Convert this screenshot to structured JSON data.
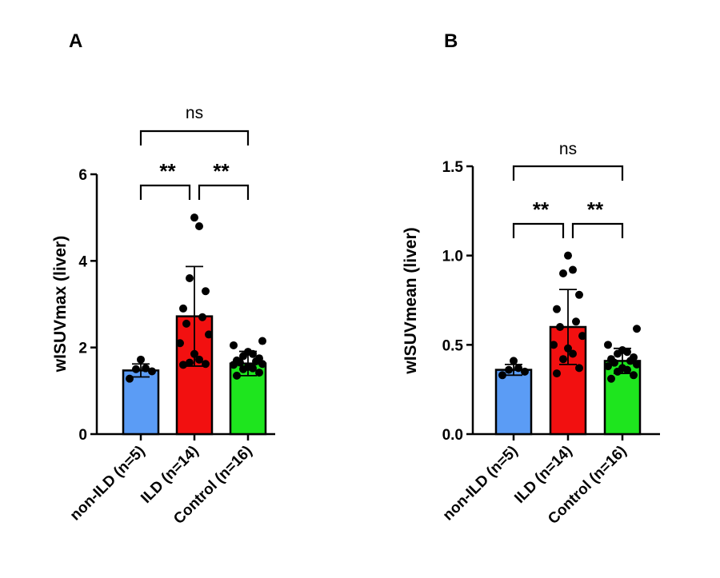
{
  "chart_data": [
    {
      "type": "bar",
      "panel": "A",
      "ylabel": "wISUVmax (liver)",
      "ylim": [
        0,
        6
      ],
      "yticks": [
        "0",
        "2",
        "4",
        "6"
      ],
      "categories": [
        "non-ILD (n=5)",
        "ILD (n=14)",
        "Control (n=16)"
      ],
      "values": [
        1.47,
        2.72,
        1.63
      ],
      "error": [
        0.15,
        1.15,
        0.28
      ],
      "colors": [
        "#5b9cf5",
        "#f21010",
        "#1ee51e"
      ],
      "points": [
        [
          1.28,
          1.45,
          1.5,
          1.52,
          1.72
        ],
        [
          1.6,
          1.62,
          1.65,
          1.72,
          1.85,
          2.1,
          2.3,
          2.55,
          2.7,
          2.9,
          3.3,
          3.6,
          4.8,
          5.0
        ],
        [
          1.35,
          1.42,
          1.5,
          1.52,
          1.55,
          1.6,
          1.62,
          1.65,
          1.68,
          1.7,
          1.75,
          1.8,
          1.85,
          1.9,
          2.05,
          2.15
        ]
      ],
      "comparisons": [
        {
          "groups": [
            0,
            1
          ],
          "label": "**"
        },
        {
          "groups": [
            1,
            2
          ],
          "label": "**"
        },
        {
          "groups": [
            0,
            2
          ],
          "label": "ns"
        }
      ]
    },
    {
      "type": "bar",
      "panel": "B",
      "ylabel": "wISUVmean (liver)",
      "ylim": [
        0,
        1.5
      ],
      "yticks": [
        "0.0",
        "0.5",
        "1.0",
        "1.5"
      ],
      "categories": [
        "non-ILD (n=5)",
        "ILD (n=14)",
        "Control (n=16)"
      ],
      "values": [
        0.36,
        0.6,
        0.41
      ],
      "error": [
        0.03,
        0.21,
        0.07
      ],
      "colors": [
        "#5b9cf5",
        "#f21010",
        "#1ee51e"
      ],
      "points": [
        [
          0.33,
          0.35,
          0.36,
          0.37,
          0.41
        ],
        [
          0.34,
          0.37,
          0.42,
          0.45,
          0.48,
          0.5,
          0.55,
          0.6,
          0.63,
          0.7,
          0.78,
          0.9,
          0.92,
          1.0
        ],
        [
          0.31,
          0.33,
          0.35,
          0.36,
          0.37,
          0.38,
          0.39,
          0.4,
          0.41,
          0.42,
          0.43,
          0.45,
          0.46,
          0.47,
          0.5,
          0.59
        ]
      ],
      "comparisons": [
        {
          "groups": [
            0,
            1
          ],
          "label": "**"
        },
        {
          "groups": [
            1,
            2
          ],
          "label": "**"
        },
        {
          "groups": [
            0,
            2
          ],
          "label": "ns"
        }
      ]
    }
  ]
}
